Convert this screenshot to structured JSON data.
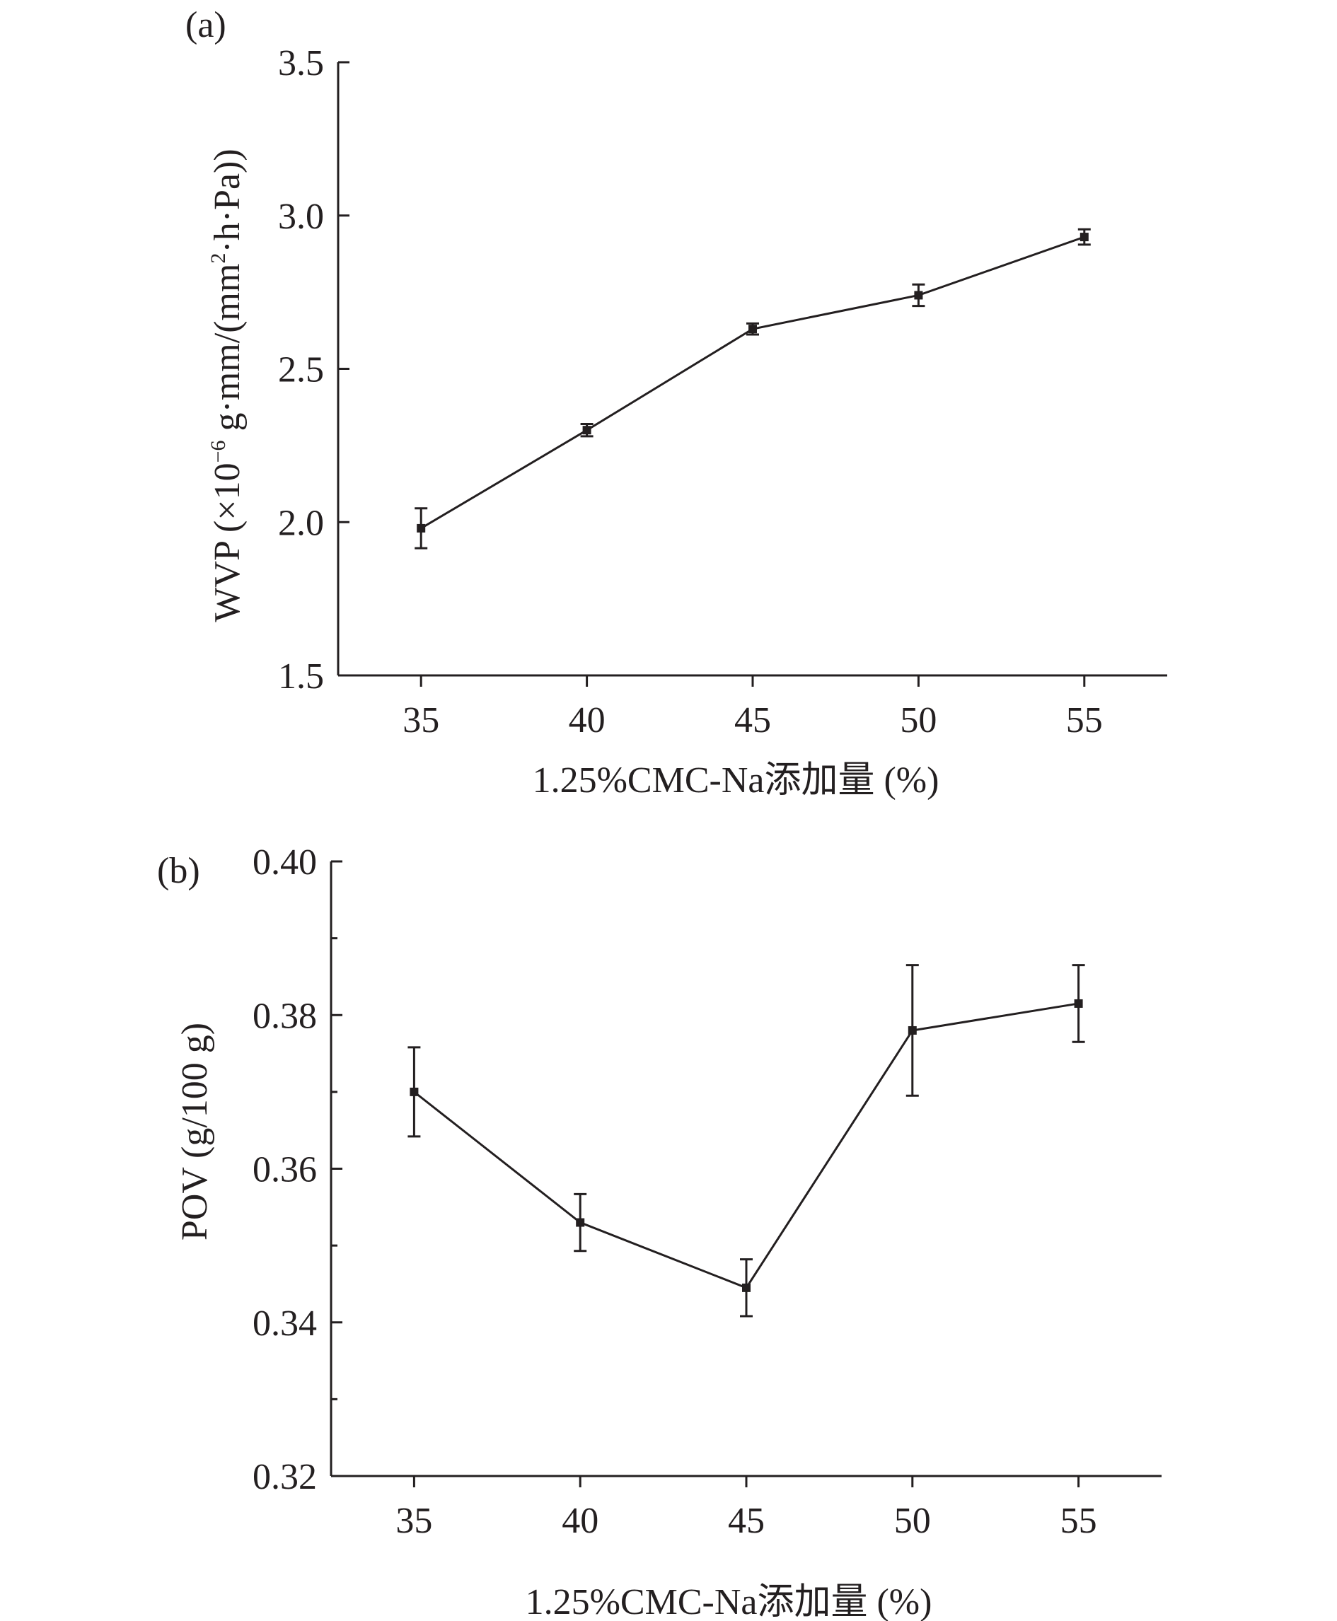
{
  "chart_data": [
    {
      "type": "line",
      "panel_label": "(a)",
      "xlabel": "1.25%CMC-Na添加量 (%)",
      "ylabel_parts": {
        "prefix": "WVP (×10",
        "exp": "−6",
        "middle": " g·mm/(mm",
        "exp2": "2",
        "suffix": "·h·Pa))"
      },
      "x": [
        35,
        40,
        45,
        50,
        55
      ],
      "x_tick_labels": [
        "35",
        "40",
        "45",
        "50",
        "55"
      ],
      "xlim": [
        32.5,
        57.5
      ],
      "ylim": [
        1.5,
        3.5
      ],
      "y_ticks": [
        1.5,
        2.0,
        2.5,
        3.0,
        3.5
      ],
      "y_tick_labels": [
        "1.5",
        "2.0",
        "2.5",
        "3.0",
        "3.5"
      ],
      "y_minor_ticks": [],
      "series": [
        {
          "values": [
            1.98,
            2.3,
            2.63,
            2.74,
            2.93
          ],
          "errors": [
            0.065,
            0.02,
            0.018,
            0.035,
            0.025
          ]
        }
      ],
      "grid": false,
      "line_color": "#231f20"
    },
    {
      "type": "line",
      "panel_label": "(b)",
      "xlabel": "1.25%CMC-Na添加量 (%)",
      "ylabel": "POV (g/100 g)",
      "x": [
        35,
        40,
        45,
        50,
        55
      ],
      "x_tick_labels": [
        "35",
        "40",
        "45",
        "50",
        "55"
      ],
      "xlim": [
        32.5,
        57.5
      ],
      "ylim": [
        0.32,
        0.4
      ],
      "y_ticks": [
        0.32,
        0.34,
        0.36,
        0.38,
        0.4
      ],
      "y_tick_labels": [
        "0.32",
        "0.34",
        "0.36",
        "0.38",
        "0.40"
      ],
      "y_minor_ticks": [
        0.33,
        0.35,
        0.37,
        0.39
      ],
      "series": [
        {
          "values": [
            0.37,
            0.353,
            0.3445,
            0.378,
            0.3815
          ],
          "errors": [
            0.0058,
            0.0037,
            0.0037,
            0.0085,
            0.005
          ]
        }
      ],
      "grid": false,
      "line_color": "#231f20"
    }
  ]
}
